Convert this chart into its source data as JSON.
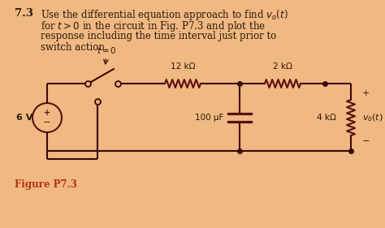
{
  "bg_color": "#f0b882",
  "title_bold": "7.3",
  "title_line1": "Use the differential equation approach to find $v_o(t)$",
  "title_line2": "for $t > 0$ in the circuit in Fig. P7.3 and plot the",
  "title_line3": "response including the time interval just prior to",
  "title_line4": "switch action.",
  "figure_label": "Figure P7.3",
  "source_voltage": "6 V",
  "r1_label": "12 kΩ",
  "r2_label": "2 kΩ",
  "c_label": "100 μF",
  "r3_label": "4 kΩ",
  "vo_label": "$v_o(t)$",
  "t0_label": "$t = 0$",
  "font_color": "#1a1a1a",
  "component_color": "#5a1010",
  "label_color": "#b83010",
  "wire_color": "#3a0808",
  "text_color": "#2a1a0a"
}
